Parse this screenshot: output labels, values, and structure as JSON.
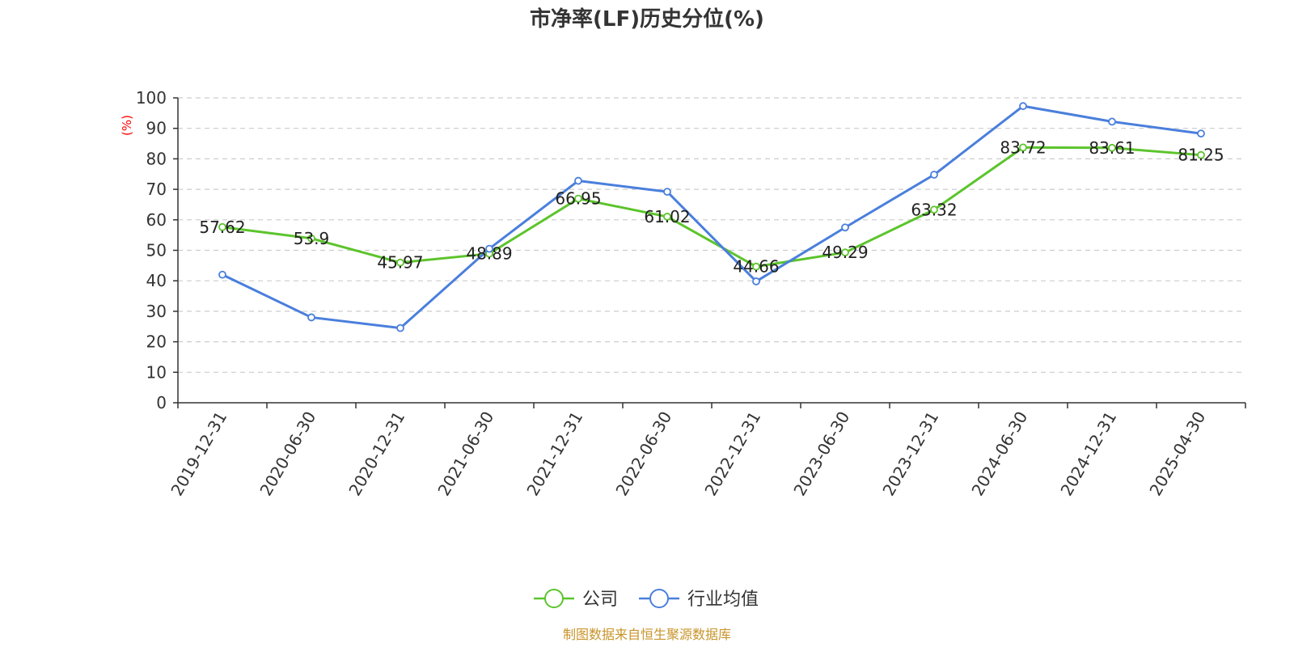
{
  "chart_data": {
    "type": "line",
    "title": "市净率(LF)历史分位(%)",
    "ylabel": "(%)",
    "ylim": [
      0,
      100
    ],
    "yticks": [
      0,
      10,
      20,
      30,
      40,
      50,
      60,
      70,
      80,
      90,
      100
    ],
    "categories": [
      "2019-12-31",
      "2020-06-30",
      "2020-12-31",
      "2021-06-30",
      "2021-12-31",
      "2022-06-30",
      "2022-12-31",
      "2023-06-30",
      "2023-12-31",
      "2024-06-30",
      "2024-12-31",
      "2025-04-30"
    ],
    "grid": true,
    "legend_position": "bottom",
    "series": [
      {
        "name": "公司",
        "color": "#5cc42c",
        "values": [
          57.62,
          53.9,
          45.97,
          48.89,
          66.95,
          61.02,
          44.66,
          49.29,
          63.32,
          83.72,
          83.61,
          81.25
        ],
        "labels": [
          "57.62",
          "53.9",
          "45.97",
          "48.89",
          "66.95",
          "61.02",
          "44.66",
          "49.29",
          "63.32",
          "83.72",
          "83.61",
          "81.25"
        ]
      },
      {
        "name": "行业均值",
        "color": "#4a7fdc",
        "values": [
          42,
          28,
          24.5,
          50.5,
          72.8,
          69.2,
          39.8,
          57.5,
          74.8,
          97.3,
          92.2,
          88.3
        ]
      }
    ]
  },
  "source": "制图数据来自恒生聚源数据库"
}
